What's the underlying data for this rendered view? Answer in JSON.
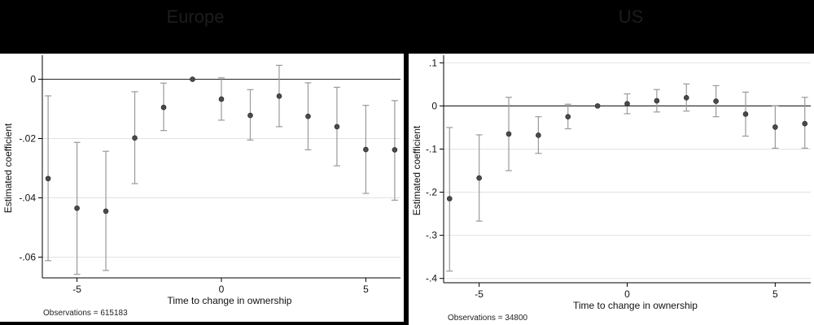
{
  "chart_data": [
    {
      "type": "scatter",
      "title": "Europe",
      "xlabel": "Time to change in ownership",
      "ylabel": "Estimated coefficient",
      "note": "Observations = 615183",
      "xlim": [
        -6.2,
        6.2
      ],
      "ylim": [
        -0.067,
        0.007
      ],
      "xticks": [
        -5,
        0,
        5
      ],
      "xtick_labels": [
        "-5",
        "0",
        "5"
      ],
      "yticks": [
        0,
        -0.02,
        -0.04,
        -0.06
      ],
      "ytick_labels": [
        "0",
        "-.02",
        "-.04",
        "-.06"
      ],
      "grid": true,
      "zero_line": true,
      "series": [
        {
          "x": [
            -6,
            -5,
            -4,
            -3,
            -2,
            -1,
            0,
            1,
            2,
            3,
            4,
            5,
            6
          ],
          "y": [
            -0.0335,
            -0.0435,
            -0.0445,
            -0.0198,
            -0.0095,
            0.0,
            -0.0067,
            -0.0122,
            -0.0057,
            -0.0125,
            -0.016,
            -0.0237,
            -0.0238
          ],
          "ci_low": [
            -0.0612,
            -0.0658,
            -0.0645,
            -0.0352,
            -0.0173,
            0.0,
            -0.0138,
            -0.0205,
            -0.016,
            -0.0238,
            -0.0292,
            -0.0385,
            -0.0408
          ],
          "ci_high": [
            -0.0056,
            -0.0213,
            -0.0243,
            -0.0042,
            -0.0013,
            0.0,
            0.0005,
            -0.0035,
            0.0047,
            -0.0012,
            -0.0027,
            -0.0088,
            -0.0072
          ]
        }
      ]
    },
    {
      "type": "scatter",
      "title": "US",
      "xlabel": "Time to change in ownership",
      "ylabel": "Estimated coefficient",
      "note": "Observations = 34800",
      "xlim": [
        -6.2,
        6.2
      ],
      "ylim": [
        -0.41,
        0.11
      ],
      "xticks": [
        -5,
        0,
        5
      ],
      "xtick_labels": [
        "-5",
        "0",
        "5"
      ],
      "yticks": [
        0.1,
        0,
        -0.1,
        -0.2,
        -0.3,
        -0.4
      ],
      "ytick_labels": [
        ".1",
        "0",
        "-.1",
        "-.2",
        "-.3",
        "-.4"
      ],
      "grid": true,
      "zero_line": true,
      "series": [
        {
          "x": [
            -6,
            -5,
            -4,
            -3,
            -2,
            -1,
            0,
            1,
            2,
            3,
            4,
            5,
            6
          ],
          "y": [
            -0.215,
            -0.167,
            -0.065,
            -0.068,
            -0.025,
            0.0,
            0.005,
            0.012,
            0.019,
            0.011,
            -0.019,
            -0.049,
            -0.041
          ],
          "ci_low": [
            -0.383,
            -0.267,
            -0.15,
            -0.11,
            -0.053,
            0.0,
            -0.018,
            -0.014,
            -0.012,
            -0.025,
            -0.07,
            -0.098,
            -0.098
          ],
          "ci_high": [
            -0.05,
            -0.067,
            0.02,
            -0.025,
            0.004,
            0.0,
            0.028,
            0.038,
            0.051,
            0.047,
            0.032,
            0.0,
            0.02
          ]
        }
      ]
    }
  ]
}
